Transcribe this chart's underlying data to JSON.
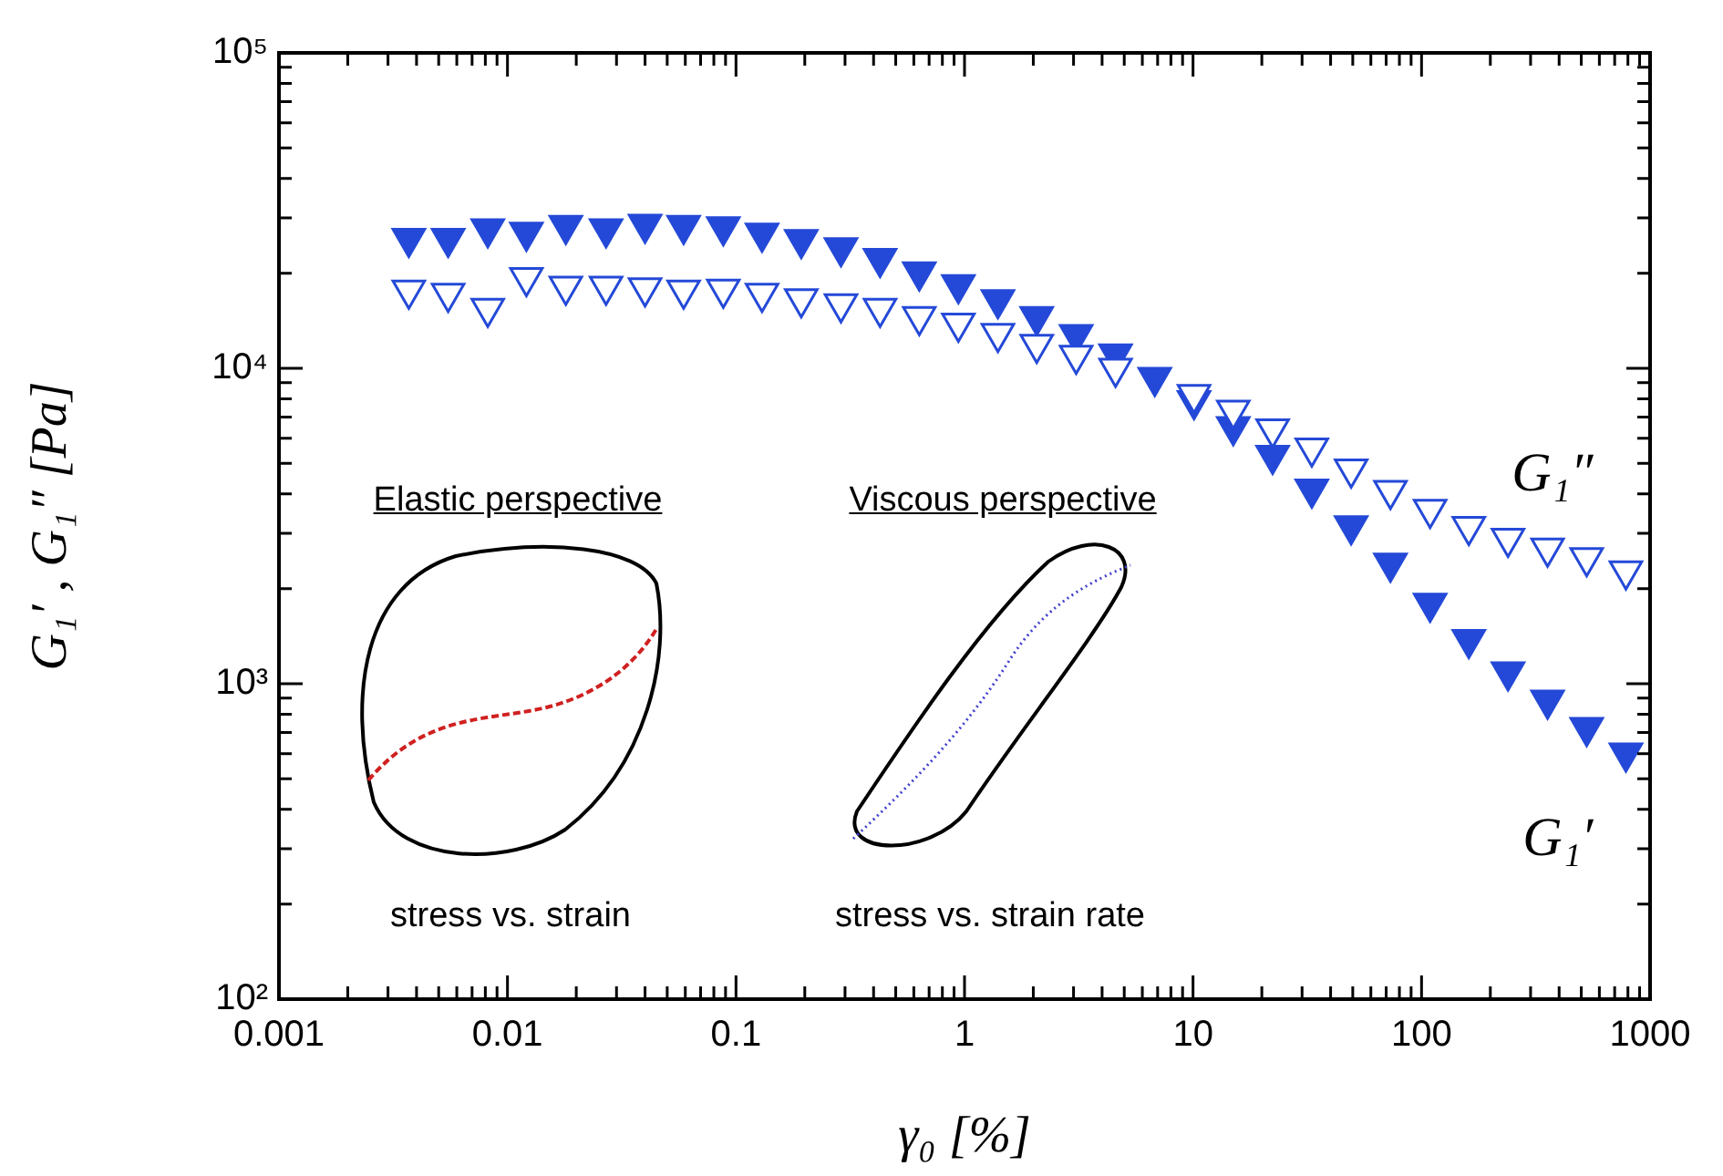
{
  "chart_data": {
    "type": "scatter",
    "xlabel": "γ₀ [%]",
    "ylabel": "G₁′ , G₁″ [Pa]",
    "log": "xy",
    "grid": false,
    "marker": "triangle",
    "xlim": [
      0.001,
      1000
    ],
    "ylim": [
      100,
      100000
    ],
    "xticks": [
      0.001,
      {
        "value": 0.002,
        "label": null
      },
      {
        "value": 0.003,
        "label": null
      },
      {
        "value": 0.004,
        "label": null
      },
      {
        "value": 0.005,
        "label": null
      },
      {
        "value": 0.006,
        "label": null
      },
      {
        "value": 0.007,
        "label": null
      },
      {
        "value": 0.008,
        "label": null
      },
      {
        "value": 0.009,
        "label": null
      },
      0.01,
      {
        "value": 0.02,
        "label": null
      },
      {
        "value": 0.03,
        "label": null
      },
      {
        "value": 0.04,
        "label": null
      },
      {
        "value": 0.05,
        "label": null
      },
      {
        "value": 0.06,
        "label": null
      },
      {
        "value": 0.07,
        "label": null
      },
      {
        "value": 0.08,
        "label": null
      },
      {
        "value": 0.09,
        "label": null
      },
      0.1,
      {
        "value": 0.2,
        "label": null
      },
      {
        "value": 0.3,
        "label": null
      },
      {
        "value": 0.4,
        "label": null
      },
      {
        "value": 0.5,
        "label": null
      },
      {
        "value": 0.6,
        "label": null
      },
      {
        "value": 0.7,
        "label": null
      },
      {
        "value": 0.8,
        "label": null
      },
      {
        "value": 0.9,
        "label": null
      },
      1,
      {
        "value": 2,
        "label": null
      },
      {
        "value": 3,
        "label": null
      },
      {
        "value": 4,
        "label": null
      },
      {
        "value": 5,
        "label": null
      },
      {
        "value": 6,
        "label": null
      },
      {
        "value": 7,
        "label": null
      },
      {
        "value": 8,
        "label": null
      },
      {
        "value": 9,
        "label": null
      },
      10,
      {
        "value": 20,
        "label": null
      },
      {
        "value": 30,
        "label": null
      },
      {
        "value": 40,
        "label": null
      },
      {
        "value": 50,
        "label": null
      },
      {
        "value": 60,
        "label": null
      },
      {
        "value": 70,
        "label": null
      },
      {
        "value": 80,
        "label": null
      },
      {
        "value": 90,
        "label": null
      },
      100,
      {
        "value": 200,
        "label": null
      },
      {
        "value": 300,
        "label": null
      },
      {
        "value": 400,
        "label": null
      },
      {
        "value": 500,
        "label": null
      },
      {
        "value": 600,
        "label": null
      },
      {
        "value": 700,
        "label": null
      },
      {
        "value": 800,
        "label": null
      },
      {
        "value": 900,
        "label": null
      },
      1000
    ],
    "yticks": [
      {
        "value": 100,
        "label": "10²"
      },
      {
        "value": 200,
        "label": null
      },
      {
        "value": 300,
        "label": null
      },
      {
        "value": 400,
        "label": null
      },
      {
        "value": 500,
        "label": null
      },
      {
        "value": 600,
        "label": null
      },
      {
        "value": 700,
        "label": null
      },
      {
        "value": 800,
        "label": null
      },
      {
        "value": 900,
        "label": null
      },
      {
        "value": 1000,
        "label": "10³"
      },
      {
        "value": 2000,
        "label": null
      },
      {
        "value": 3000,
        "label": null
      },
      {
        "value": 4000,
        "label": null
      },
      {
        "value": 5000,
        "label": null
      },
      {
        "value": 6000,
        "label": null
      },
      {
        "value": 7000,
        "label": null
      },
      {
        "value": 8000,
        "label": null
      },
      {
        "value": 9000,
        "label": null
      },
      {
        "value": 10000,
        "label": "10⁴"
      },
      {
        "value": 20000,
        "label": null
      },
      {
        "value": 30000,
        "label": null
      },
      {
        "value": 40000,
        "label": null
      },
      {
        "value": 50000,
        "label": null
      },
      {
        "value": 60000,
        "label": null
      },
      {
        "value": 70000,
        "label": null
      },
      {
        "value": 80000,
        "label": null
      },
      {
        "value": 90000,
        "label": null
      },
      {
        "value": 100000,
        "label": "10⁵"
      }
    ],
    "x": [
      0.0037,
      0.0055,
      0.0082,
      0.0121,
      0.018,
      0.027,
      0.04,
      0.059,
      0.088,
      0.13,
      0.193,
      0.288,
      0.427,
      0.634,
      0.94,
      1.4,
      2.07,
      3.08,
      4.58,
      6.8,
      10.1,
      15.0,
      22.3,
      33.1,
      49.2,
      73.1,
      109,
      161,
      239,
      356,
      528,
      784
    ],
    "series": [
      {
        "name": "G₁′",
        "color": "#2449d8",
        "values": [
          25800,
          25800,
          27700,
          27000,
          28400,
          27700,
          28600,
          28400,
          28100,
          26800,
          25600,
          24100,
          22300,
          20200,
          18400,
          16500,
          14600,
          12800,
          11100,
          9350,
          7900,
          6530,
          5300,
          4140,
          3170,
          2410,
          1800,
          1380,
          1090,
          887,
          726,
          603
        ]
      },
      {
        "name": "G₁″",
        "color": "#2449d8",
        "values": [
          17700,
          17300,
          15500,
          19400,
          18200,
          18200,
          18000,
          17700,
          17800,
          17300,
          16600,
          16000,
          15500,
          14600,
          13900,
          12900,
          11900,
          11000,
          10000,
          null,
          8260,
          7360,
          6420,
          5590,
          4790,
          4100,
          3570,
          3150,
          2890,
          2690,
          2510,
          2280
        ]
      }
    ],
    "annotations": [
      "Elastic perspective",
      "Viscous perspective",
      "stress vs. strain",
      "stress vs. strain rate"
    ]
  }
}
